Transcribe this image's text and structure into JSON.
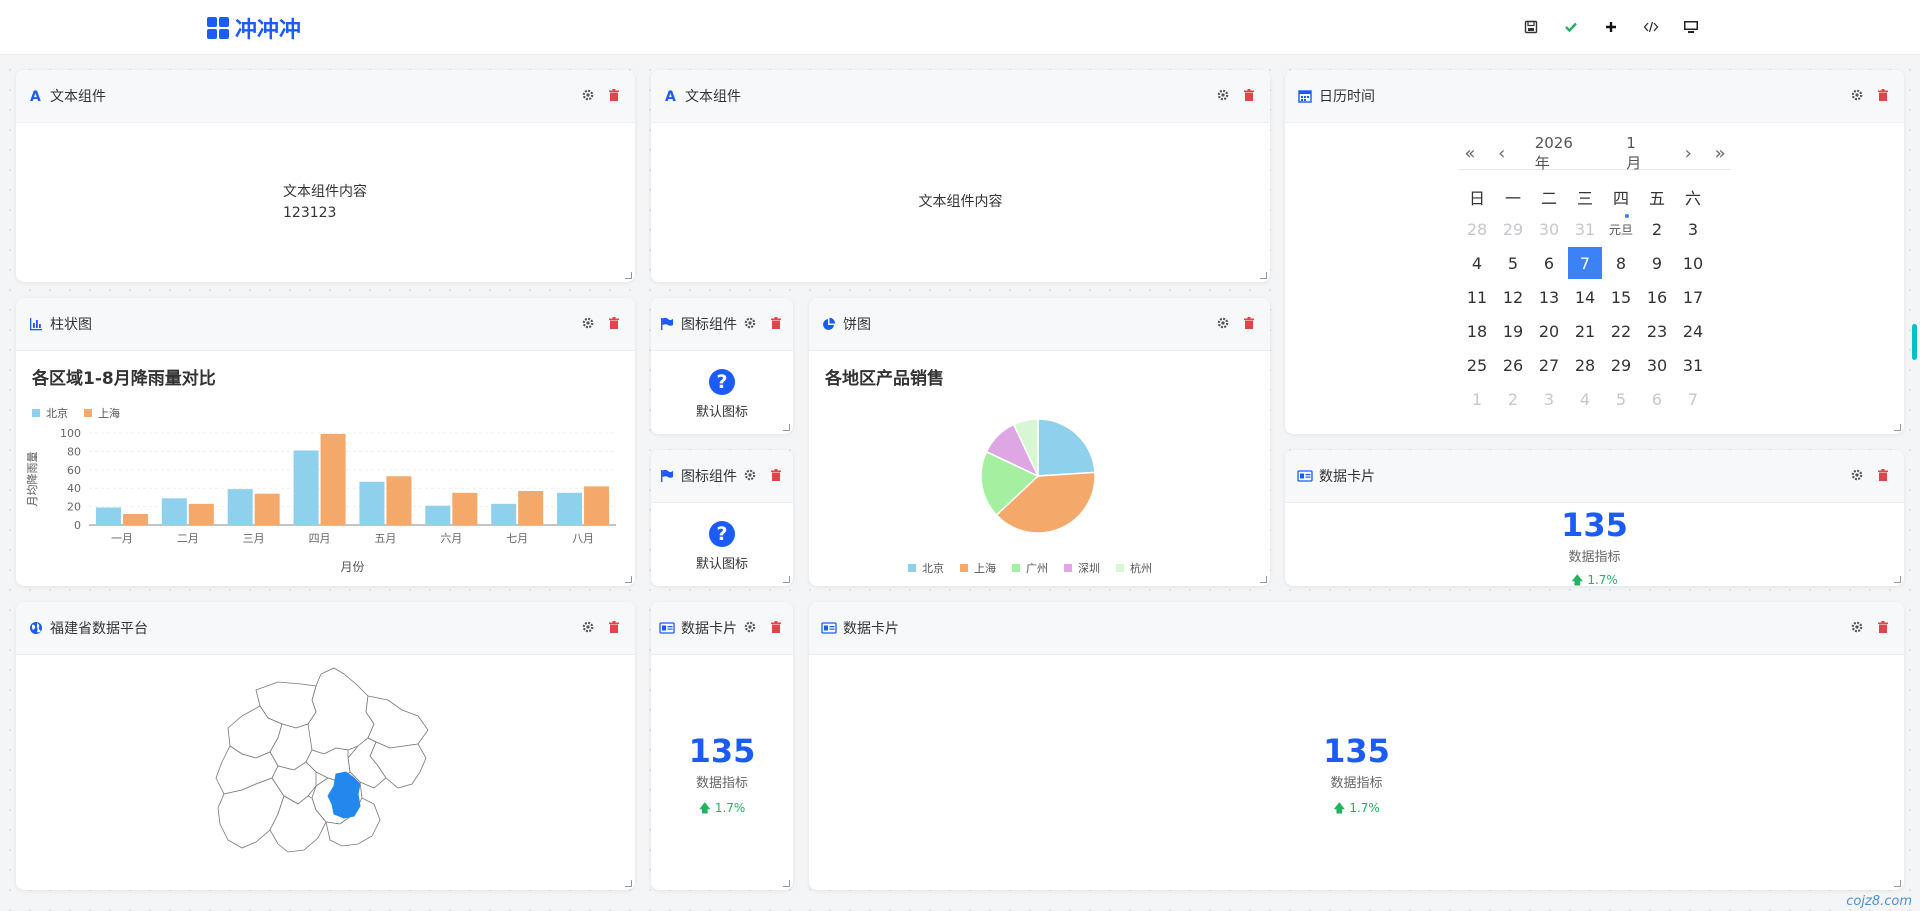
{
  "app": {
    "title": "冲冲冲"
  },
  "toolbar": {
    "items": [
      "save-icon",
      "check-icon",
      "plus-icon",
      "code-icon",
      "monitor-icon"
    ]
  },
  "text1": {
    "title": "文本组件",
    "line1": "文本组件内容",
    "line2": "123123"
  },
  "text2": {
    "title": "文本组件",
    "content": "文本组件内容"
  },
  "calendar": {
    "title": "日历时间",
    "year": "2026 年",
    "month": "1 月",
    "weekdays": [
      "日",
      "一",
      "二",
      "三",
      "四",
      "五",
      "六"
    ],
    "holiday": "元旦",
    "today": "7",
    "days": [
      [
        "28",
        "29",
        "30",
        "31",
        "1",
        "2",
        "3"
      ],
      [
        "4",
        "5",
        "6",
        "7",
        "8",
        "9",
        "10"
      ],
      [
        "11",
        "12",
        "13",
        "14",
        "15",
        "16",
        "17"
      ],
      [
        "18",
        "19",
        "20",
        "21",
        "22",
        "23",
        "24"
      ],
      [
        "25",
        "26",
        "27",
        "28",
        "29",
        "30",
        "31"
      ],
      [
        "1",
        "2",
        "3",
        "4",
        "5",
        "6",
        "7"
      ]
    ]
  },
  "bar_card": {
    "title": "柱状图"
  },
  "icon1": {
    "title": "图标组件",
    "label": "默认图标"
  },
  "icon2": {
    "title": "图标组件",
    "label": "默认图标"
  },
  "pie_card": {
    "title": "饼图"
  },
  "map_card": {
    "title": "福建省数据平台"
  },
  "data1": {
    "title": "数据卡片",
    "value": "135",
    "label": "数据指标",
    "change": "1.7%"
  },
  "data2": {
    "title": "数据卡片",
    "value": "135",
    "label": "数据指标",
    "change": "1.7%"
  },
  "data3": {
    "title": "数据卡片",
    "value": "135",
    "label": "数据指标",
    "change": "1.7%"
  },
  "watermark": "cojz8.com",
  "colors": {
    "accent": "#1a5cf5",
    "danger": "#e0454a",
    "up": "#22b35e"
  },
  "chart_data": [
    {
      "type": "bar",
      "title": "各区域1-8月降雨量对比",
      "xlabel": "月份",
      "ylabel": "月均降雨量",
      "categories": [
        "一月",
        "二月",
        "三月",
        "四月",
        "五月",
        "六月",
        "七月",
        "八月"
      ],
      "series": [
        {
          "name": "北京",
          "color": "#8fd0ec",
          "values": [
            19,
            29,
            39,
            81,
            47,
            21,
            23,
            35
          ]
        },
        {
          "name": "上海",
          "color": "#f4a96a",
          "values": [
            12,
            23,
            34,
            99,
            53,
            35,
            37,
            42
          ]
        }
      ],
      "ylim": [
        0,
        100
      ],
      "yticks": [
        "0",
        "20",
        "40",
        "60",
        "80",
        "100"
      ],
      "legend": "top-left",
      "grid": true
    },
    {
      "type": "pie",
      "title": "各地区产品销售",
      "series": [
        {
          "name": "北京",
          "value": 24,
          "color": "#8fd0ec"
        },
        {
          "name": "上海",
          "value": 39,
          "color": "#f4a96a"
        },
        {
          "name": "广州",
          "value": 19,
          "color": "#a4f0a0"
        },
        {
          "name": "深圳",
          "value": 11,
          "color": "#dea6e3"
        },
        {
          "name": "杭州",
          "value": 7,
          "color": "#d7f7d4"
        }
      ],
      "legend": "bottom"
    }
  ]
}
